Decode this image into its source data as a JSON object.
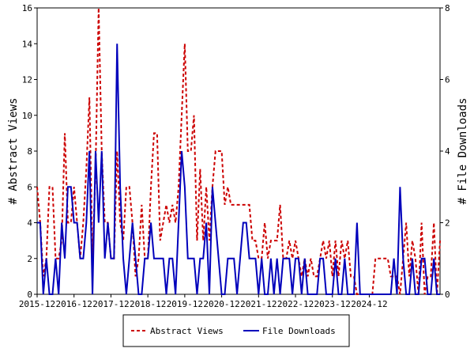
{
  "chart_data": {
    "type": "line",
    "xlabel": "",
    "x_ticks": [
      "2015-12",
      "2016-12",
      "2017-12",
      "2018-12",
      "2019-12",
      "2020-12",
      "2021-12",
      "2022-12",
      "2023-12",
      "2024-12"
    ],
    "y_left": {
      "label": "# Abstract Views",
      "range": [
        0,
        16
      ],
      "ticks": [
        "0",
        "2",
        "4",
        "6",
        "8",
        "10",
        "12",
        "14",
        "16"
      ]
    },
    "y_right": {
      "label": "# File Downloads",
      "range": [
        0,
        8
      ],
      "ticks": [
        "0",
        "2",
        "4",
        "6",
        "8"
      ]
    },
    "grid": "off",
    "legend_position": "bottom-center",
    "series": [
      {
        "name": "Abstract Views",
        "axis": "left",
        "color": "#cc0000",
        "style": "dashed",
        "values": [
          6,
          4,
          1,
          2,
          6,
          6,
          2,
          2,
          3,
          9,
          4,
          4,
          6,
          4,
          2,
          4,
          7,
          11,
          2,
          7,
          16,
          8,
          4,
          4,
          2,
          2,
          8,
          4,
          3,
          6,
          6,
          4,
          1,
          2,
          5,
          2,
          2,
          6,
          9,
          9,
          3,
          4,
          5,
          4,
          5,
          4,
          6,
          10,
          14,
          8,
          8,
          10,
          3,
          7,
          3,
          6,
          3,
          6,
          8,
          8,
          8,
          5,
          6,
          5,
          5,
          5,
          5,
          5,
          5,
          5,
          3,
          3,
          2,
          2,
          4,
          2,
          3,
          3,
          3,
          5,
          2,
          2,
          3,
          2,
          3,
          2,
          1,
          2,
          1,
          2,
          1,
          1,
          2,
          3,
          2,
          3,
          1,
          3,
          1,
          3,
          2,
          3,
          1,
          1,
          0,
          0,
          0,
          0,
          0,
          0,
          2,
          2,
          2,
          2,
          2,
          1,
          1,
          1,
          0,
          2,
          4,
          1,
          3,
          2,
          0,
          4,
          0,
          1,
          1,
          4,
          0,
          3
        ]
      },
      {
        "name": "File Downloads",
        "axis": "right",
        "color": "#0000bb",
        "style": "solid",
        "values": [
          2,
          2,
          0,
          1,
          0,
          0,
          1,
          0,
          2,
          1,
          3,
          3,
          2,
          2,
          1,
          1,
          2,
          4,
          0,
          4,
          2,
          4,
          1,
          2,
          1,
          1,
          7,
          3,
          1,
          0,
          1,
          2,
          1,
          0,
          0,
          1,
          1,
          2,
          1,
          1,
          1,
          1,
          0,
          1,
          1,
          0,
          2,
          4,
          3,
          1,
          1,
          1,
          0,
          1,
          1,
          2,
          0,
          3,
          2,
          1,
          0,
          0,
          1,
          1,
          1,
          0,
          1,
          2,
          2,
          1,
          1,
          1,
          0,
          1,
          0,
          0,
          1,
          0,
          1,
          0,
          1,
          1,
          1,
          0,
          1,
          1,
          0,
          1,
          0,
          0,
          0,
          0,
          1,
          1,
          0,
          0,
          0,
          1,
          0,
          0,
          1,
          0,
          0,
          0,
          2,
          0,
          0,
          0,
          0,
          0,
          0,
          0,
          0,
          0,
          0,
          0,
          1,
          0,
          3,
          1,
          0,
          0,
          1,
          0,
          0,
          1,
          1,
          0,
          0,
          1,
          0,
          0
        ]
      }
    ]
  }
}
